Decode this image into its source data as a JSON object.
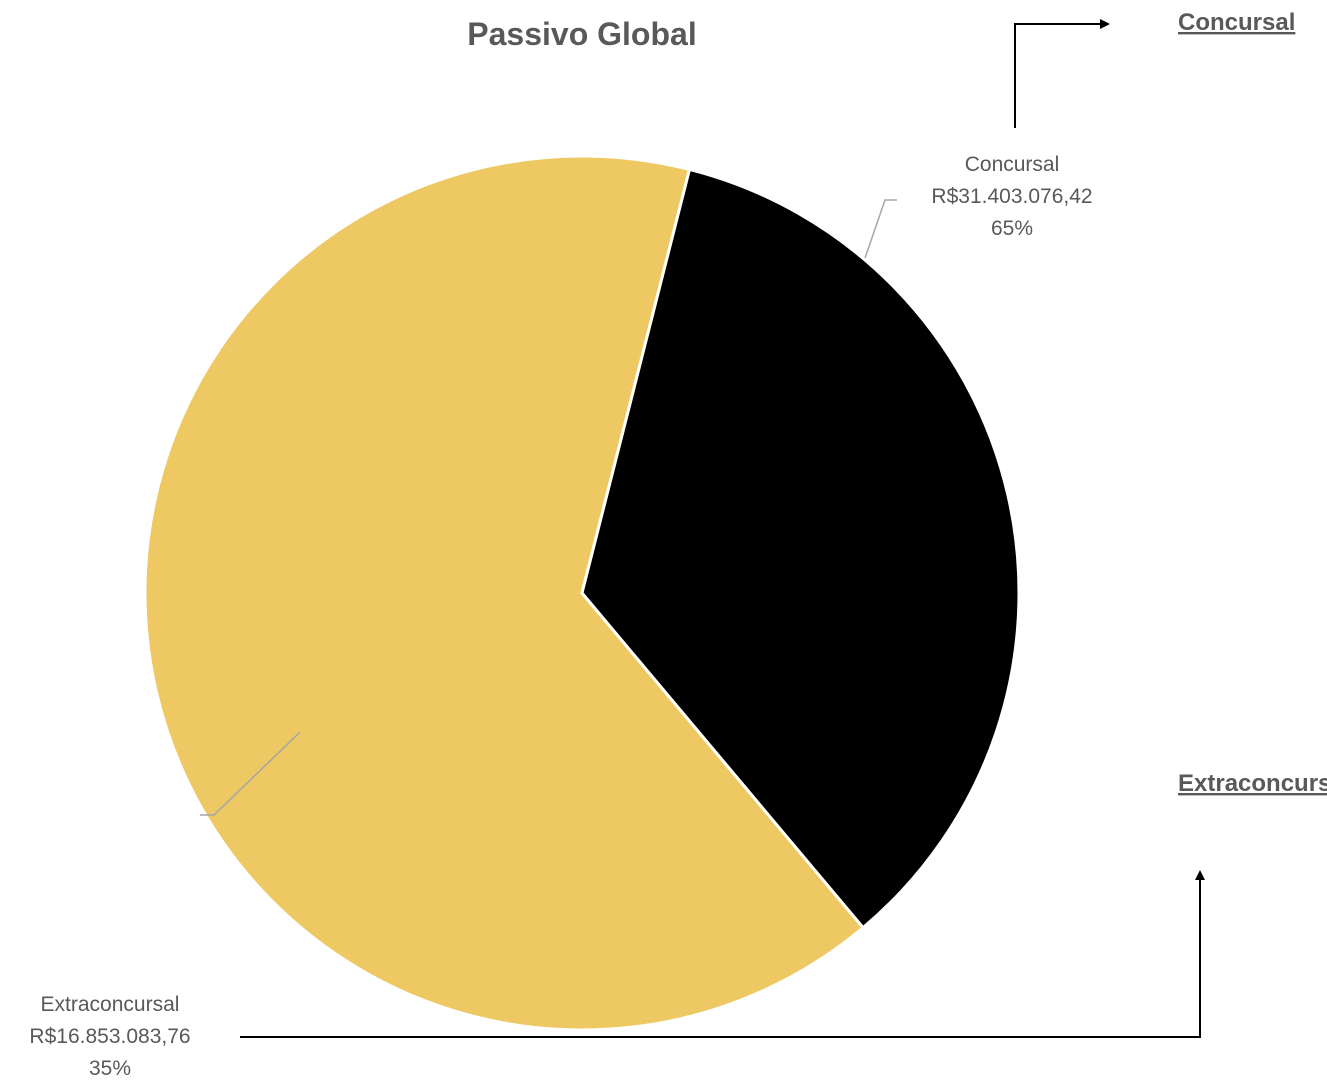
{
  "chart_data": {
    "type": "pie",
    "title": "Passivo Global",
    "slices": [
      {
        "label": "Concursal",
        "value_text": "R$31.403.076,42",
        "percent_text": "65%",
        "value": 31403076.42,
        "percent": 65,
        "color": "#EEC862"
      },
      {
        "label": "Extraconcursal",
        "value_text": "R$16.853.083,76",
        "percent_text": "35%",
        "value": 16853083.76,
        "percent": 35,
        "color": "#000000"
      }
    ],
    "legend": "none"
  },
  "links": {
    "concursal": "Concursal",
    "extraconcursal": "Extraconcursal"
  },
  "colors": {
    "leader_line": "#A6A6A6",
    "arrow": "#000000",
    "slice_border": "#FFFFFF"
  }
}
